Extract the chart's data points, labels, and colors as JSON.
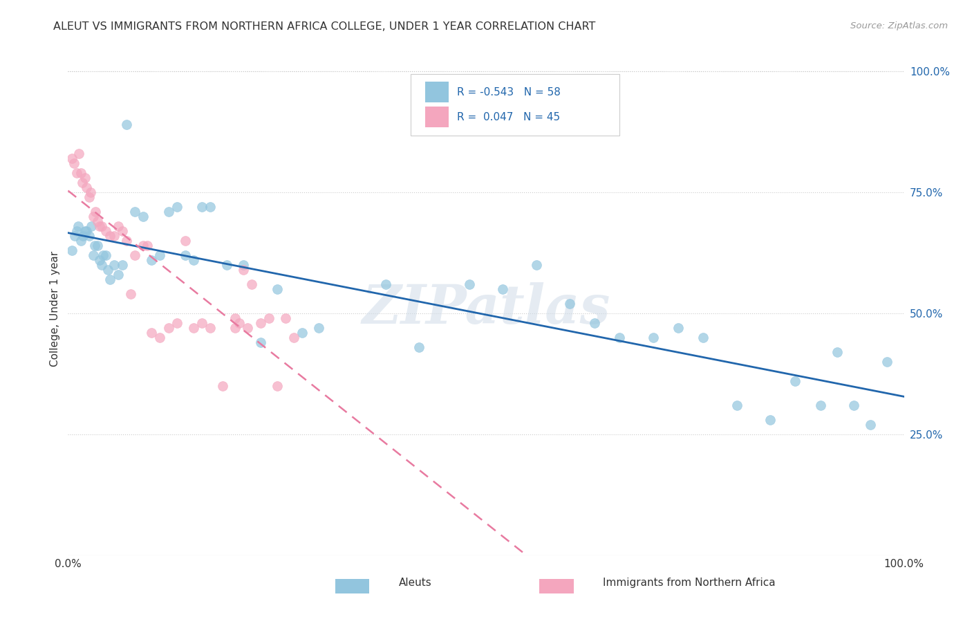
{
  "title": "ALEUT VS IMMIGRANTS FROM NORTHERN AFRICA COLLEGE, UNDER 1 YEAR CORRELATION CHART",
  "source": "Source: ZipAtlas.com",
  "ylabel": "College, Under 1 year",
  "legend_label1": "Aleuts",
  "legend_label2": "Immigrants from Northern Africa",
  "r1": "-0.543",
  "n1": "58",
  "r2": "0.047",
  "n2": "45",
  "blue_color": "#92c5de",
  "pink_color": "#f4a6be",
  "blue_line_color": "#2166ac",
  "pink_line_color": "#e87aa0",
  "watermark": "ZIPatlas",
  "blue_scatter_x": [
    0.005,
    0.008,
    0.01,
    0.012,
    0.015,
    0.018,
    0.02,
    0.022,
    0.025,
    0.028,
    0.03,
    0.032,
    0.035,
    0.038,
    0.04,
    0.042,
    0.045,
    0.048,
    0.05,
    0.055,
    0.06,
    0.065,
    0.07,
    0.08,
    0.09,
    0.1,
    0.11,
    0.12,
    0.13,
    0.14,
    0.15,
    0.16,
    0.17,
    0.19,
    0.21,
    0.23,
    0.25,
    0.28,
    0.3,
    0.38,
    0.42,
    0.48,
    0.52,
    0.56,
    0.6,
    0.63,
    0.66,
    0.7,
    0.73,
    0.76,
    0.8,
    0.84,
    0.87,
    0.9,
    0.92,
    0.94,
    0.96,
    0.98
  ],
  "blue_scatter_y": [
    0.63,
    0.66,
    0.67,
    0.68,
    0.65,
    0.66,
    0.67,
    0.67,
    0.66,
    0.68,
    0.62,
    0.64,
    0.64,
    0.61,
    0.6,
    0.62,
    0.62,
    0.59,
    0.57,
    0.6,
    0.58,
    0.6,
    0.89,
    0.71,
    0.7,
    0.61,
    0.62,
    0.71,
    0.72,
    0.62,
    0.61,
    0.72,
    0.72,
    0.6,
    0.6,
    0.44,
    0.55,
    0.46,
    0.47,
    0.56,
    0.43,
    0.56,
    0.55,
    0.6,
    0.52,
    0.48,
    0.45,
    0.45,
    0.47,
    0.45,
    0.31,
    0.28,
    0.36,
    0.31,
    0.42,
    0.31,
    0.27,
    0.4
  ],
  "pink_scatter_x": [
    0.005,
    0.007,
    0.01,
    0.013,
    0.015,
    0.017,
    0.02,
    0.022,
    0.025,
    0.027,
    0.03,
    0.033,
    0.035,
    0.038,
    0.04,
    0.045,
    0.05,
    0.055,
    0.06,
    0.065,
    0.07,
    0.075,
    0.08,
    0.09,
    0.095,
    0.1,
    0.11,
    0.12,
    0.13,
    0.14,
    0.15,
    0.16,
    0.17,
    0.185,
    0.2,
    0.21,
    0.22,
    0.23,
    0.24,
    0.25,
    0.26,
    0.27,
    0.2,
    0.215,
    0.205
  ],
  "pink_scatter_y": [
    0.82,
    0.81,
    0.79,
    0.83,
    0.79,
    0.77,
    0.78,
    0.76,
    0.74,
    0.75,
    0.7,
    0.71,
    0.69,
    0.68,
    0.68,
    0.67,
    0.66,
    0.66,
    0.68,
    0.67,
    0.65,
    0.54,
    0.62,
    0.64,
    0.64,
    0.46,
    0.45,
    0.47,
    0.48,
    0.65,
    0.47,
    0.48,
    0.47,
    0.35,
    0.47,
    0.59,
    0.56,
    0.48,
    0.49,
    0.35,
    0.49,
    0.45,
    0.49,
    0.47,
    0.48
  ],
  "xlim": [
    0.0,
    1.0
  ],
  "ylim": [
    0.0,
    1.02
  ],
  "yticks": [
    0.25,
    0.5,
    0.75,
    1.0
  ],
  "ytick_labels": [
    "25.0%",
    "50.0%",
    "75.0%",
    "100.0%"
  ],
  "xtick_left": "0.0%",
  "xtick_right": "100.0%"
}
